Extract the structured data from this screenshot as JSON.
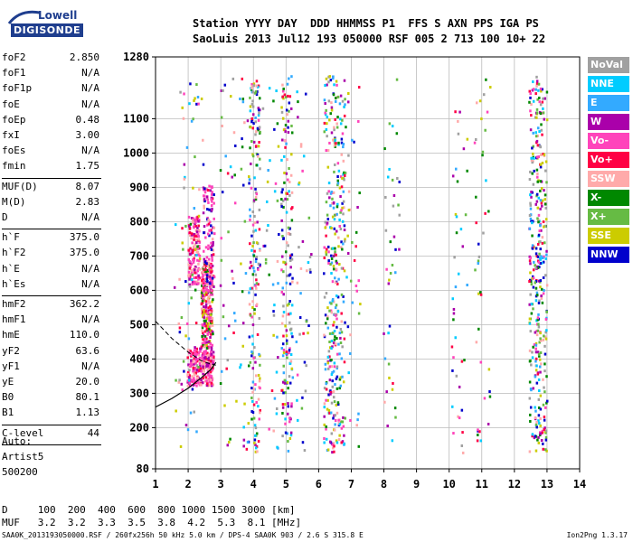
{
  "logo": {
    "line1": "Lowell",
    "line2": "DIGISONDE"
  },
  "header": {
    "line1": "Station YYYY DAY  DDD HHMMSS P1  FFS S AXN PPS IGA PS",
    "line2": "SaoLuis 2013 Jul12 193 050000 RSF 005 2 713 100 10+ 22"
  },
  "params_group1": [
    {
      "k": "foF2",
      "v": "2.850"
    },
    {
      "k": "foF1",
      "v": "N/A"
    },
    {
      "k": "foF1p",
      "v": "N/A"
    },
    {
      "k": "foE",
      "v": "N/A"
    },
    {
      "k": "foEp",
      "v": "0.48"
    },
    {
      "k": "fxI",
      "v": "3.00"
    },
    {
      "k": "foEs",
      "v": "N/A"
    },
    {
      "k": "fmin",
      "v": "1.75"
    }
  ],
  "params_group2": [
    {
      "k": "MUF(D)",
      "v": "8.07"
    },
    {
      "k": "M(D)",
      "v": "2.83"
    },
    {
      "k": "D",
      "v": "N/A"
    }
  ],
  "params_group3": [
    {
      "k": "h`F",
      "v": "375.0"
    },
    {
      "k": "h`F2",
      "v": "375.0"
    },
    {
      "k": "h`E",
      "v": "N/A"
    },
    {
      "k": "h`Es",
      "v": "N/A"
    }
  ],
  "params_group4": [
    {
      "k": "hmF2",
      "v": "362.2"
    },
    {
      "k": "hmF1",
      "v": "N/A"
    },
    {
      "k": "hmE",
      "v": "110.0"
    },
    {
      "k": "yF2",
      "v": "63.6"
    },
    {
      "k": "yF1",
      "v": "N/A"
    },
    {
      "k": "yE",
      "v": "20.0"
    },
    {
      "k": "B0",
      "v": "80.1"
    },
    {
      "k": "B1",
      "v": "1.13"
    }
  ],
  "clevel": {
    "k": "C-level",
    "v": "44"
  },
  "auto": {
    "line1": "Auto:",
    "line2": "Artist5",
    "line3": "500200"
  },
  "legend": [
    {
      "label": "NoVal",
      "color": "#a0a0a0"
    },
    {
      "label": "NNE",
      "color": "#00ccff"
    },
    {
      "label": "E",
      "color": "#33aaff"
    },
    {
      "label": "W",
      "color": "#aa00aa"
    },
    {
      "label": "Vo-",
      "color": "#ff44bb"
    },
    {
      "label": "Vo+",
      "color": "#ff0044"
    },
    {
      "label": "SSW",
      "color": "#ffaaaa"
    },
    {
      "label": "X-",
      "color": "#008800"
    },
    {
      "label": "X+",
      "color": "#66bb44"
    },
    {
      "label": "SSE",
      "color": "#cccc00"
    },
    {
      "label": "NNW",
      "color": "#0000cc"
    }
  ],
  "bottom": {
    "line1": "D     100  200  400  600  800 1000 1500 3000 [km]",
    "line2": "MUF   3.2  3.2  3.3  3.5  3.8  4.2  5.3  8.1 [MHz]"
  },
  "footer": "SAA0K_2013193050000.RSF / 260fx256h 50 kHz 5.0 km / DPS-4 SAA0K 903 / 2.6 S 315.8 E",
  "version": "Ion2Png 1.3.17",
  "chart_data": {
    "type": "scatter",
    "x_ticks": [
      "1",
      "2",
      "3",
      "4",
      "5",
      "6",
      "7",
      "8",
      "9",
      "10",
      "11",
      "12",
      "13",
      "14"
    ],
    "y_ticks": [
      "80",
      "200",
      "300",
      "400",
      "500",
      "600",
      "700",
      "800",
      "900",
      "1000",
      "1100",
      "1280"
    ],
    "xlim": [
      1,
      14
    ],
    "ylim": [
      80,
      1280
    ],
    "grid": true,
    "trace_curve": {
      "x": [
        1.0,
        1.5,
        2.0,
        2.4,
        2.7,
        2.85
      ],
      "y": [
        260,
        285,
        315,
        345,
        370,
        390
      ]
    },
    "dashed_curve": {
      "x": [
        1.0,
        1.5,
        2.0,
        2.4,
        2.7,
        2.85
      ],
      "y": [
        510,
        460,
        420,
        395,
        385,
        382
      ]
    }
  }
}
